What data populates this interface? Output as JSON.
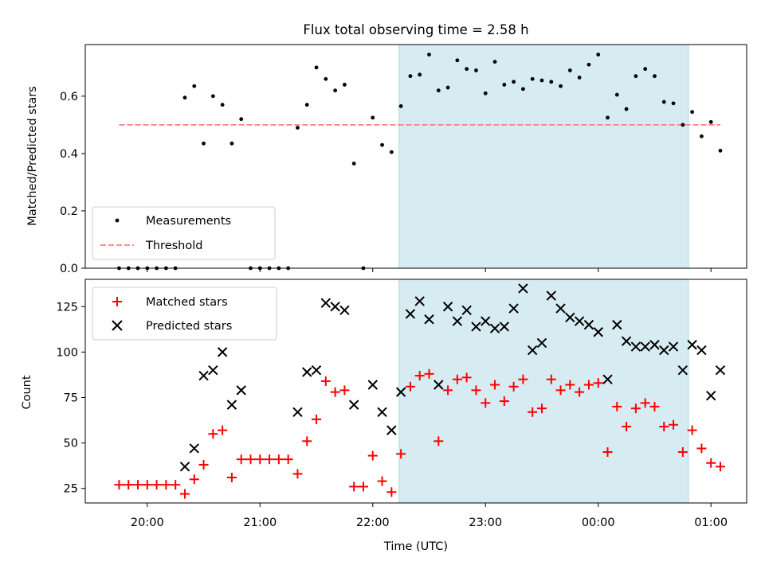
{
  "figure_title": "Flux total observing time = 2.58 h",
  "colors": {
    "measurements": "#000000",
    "threshold": "#ff7f7f",
    "matched": "#ff0000",
    "predicted": "#000000",
    "shade": "#add8e6"
  },
  "chart_data": [
    {
      "type": "scatter",
      "title": "Flux total observing time = 2.58 h",
      "xlabel": "",
      "ylabel": "Matched/Predicted stars",
      "ylim": [
        0,
        0.78
      ],
      "xlim": [
        "19:27",
        "01:19"
      ],
      "yticks": [
        "0.0",
        "0.2",
        "0.4",
        "0.6"
      ],
      "legend": "lower-left",
      "shaded_interval": [
        "22:14",
        "00:48"
      ],
      "threshold": {
        "name": "Threshold",
        "value": 0.5,
        "x_range": [
          "19:45",
          "01:05"
        ]
      },
      "series": [
        {
          "name": "Measurements",
          "marker": "dot",
          "points": [
            [
              "19:45",
              0.0
            ],
            [
              "19:50",
              0.0
            ],
            [
              "19:55",
              0.0
            ],
            [
              "20:00",
              0.0
            ],
            [
              "20:05",
              0.0
            ],
            [
              "20:10",
              0.0
            ],
            [
              "20:15",
              0.0
            ],
            [
              "20:20",
              0.595
            ],
            [
              "20:25",
              0.635
            ],
            [
              "20:30",
              0.435
            ],
            [
              "20:35",
              0.6
            ],
            [
              "20:40",
              0.57
            ],
            [
              "20:45",
              0.435
            ],
            [
              "20:50",
              0.52
            ],
            [
              "20:55",
              0.0
            ],
            [
              "21:00",
              0.0
            ],
            [
              "21:05",
              0.0
            ],
            [
              "21:10",
              0.0
            ],
            [
              "21:15",
              0.0
            ],
            [
              "21:20",
              0.49
            ],
            [
              "21:25",
              0.57
            ],
            [
              "21:30",
              0.7
            ],
            [
              "21:35",
              0.66
            ],
            [
              "21:40",
              0.62
            ],
            [
              "21:45",
              0.64
            ],
            [
              "21:50",
              0.365
            ],
            [
              "21:55",
              0.0
            ],
            [
              "22:00",
              0.525
            ],
            [
              "22:05",
              0.43
            ],
            [
              "22:10",
              0.405
            ],
            [
              "22:15",
              0.565
            ],
            [
              "22:20",
              0.67
            ],
            [
              "22:25",
              0.675
            ],
            [
              "22:30",
              0.745
            ],
            [
              "22:35",
              0.62
            ],
            [
              "22:40",
              0.63
            ],
            [
              "22:45",
              0.725
            ],
            [
              "22:50",
              0.695
            ],
            [
              "22:55",
              0.69
            ],
            [
              "23:00",
              0.61
            ],
            [
              "23:05",
              0.72
            ],
            [
              "23:10",
              0.64
            ],
            [
              "23:15",
              0.65
            ],
            [
              "23:20",
              0.625
            ],
            [
              "23:25",
              0.66
            ],
            [
              "23:30",
              0.655
            ],
            [
              "23:35",
              0.65
            ],
            [
              "23:40",
              0.635
            ],
            [
              "23:45",
              0.69
            ],
            [
              "23:50",
              0.665
            ],
            [
              "23:55",
              0.71
            ],
            [
              "00:00",
              0.745
            ],
            [
              "00:05",
              0.525
            ],
            [
              "00:10",
              0.605
            ],
            [
              "00:15",
              0.555
            ],
            [
              "00:20",
              0.67
            ],
            [
              "00:25",
              0.695
            ],
            [
              "00:30",
              0.67
            ],
            [
              "00:35",
              0.58
            ],
            [
              "00:40",
              0.575
            ],
            [
              "00:45",
              0.5
            ],
            [
              "00:50",
              0.545
            ],
            [
              "00:55",
              0.46
            ],
            [
              "01:00",
              0.51
            ],
            [
              "01:05",
              0.41
            ]
          ]
        }
      ]
    },
    {
      "type": "scatter",
      "xlabel": "Time (UTC)",
      "ylabel": "Count",
      "ylim": [
        17,
        140
      ],
      "xlim": [
        "19:27",
        "01:19"
      ],
      "yticks": [
        "25",
        "50",
        "75",
        "100",
        "125"
      ],
      "xticks": [
        "20:00",
        "21:00",
        "22:00",
        "23:00",
        "00:00",
        "01:00"
      ],
      "legend": "upper-left",
      "shaded_interval": [
        "22:14",
        "00:48"
      ],
      "series": [
        {
          "name": "Matched stars",
          "marker": "plus",
          "points": [
            [
              "19:45",
              27
            ],
            [
              "19:50",
              27
            ],
            [
              "19:55",
              27
            ],
            [
              "20:00",
              27
            ],
            [
              "20:05",
              27
            ],
            [
              "20:10",
              27
            ],
            [
              "20:15",
              27
            ],
            [
              "20:20",
              22
            ],
            [
              "20:25",
              30
            ],
            [
              "20:30",
              38
            ],
            [
              "20:35",
              55
            ],
            [
              "20:40",
              57
            ],
            [
              "20:45",
              31
            ],
            [
              "20:50",
              41
            ],
            [
              "20:55",
              41
            ],
            [
              "21:00",
              41
            ],
            [
              "21:05",
              41
            ],
            [
              "21:10",
              41
            ],
            [
              "21:15",
              41
            ],
            [
              "21:20",
              33
            ],
            [
              "21:25",
              51
            ],
            [
              "21:30",
              63
            ],
            [
              "21:35",
              84
            ],
            [
              "21:40",
              78
            ],
            [
              "21:45",
              79
            ],
            [
              "21:50",
              26
            ],
            [
              "21:55",
              26
            ],
            [
              "22:00",
              43
            ],
            [
              "22:05",
              29
            ],
            [
              "22:10",
              23
            ],
            [
              "22:15",
              44
            ],
            [
              "22:20",
              81
            ],
            [
              "22:25",
              87
            ],
            [
              "22:30",
              88
            ],
            [
              "22:35",
              51
            ],
            [
              "22:40",
              79
            ],
            [
              "22:45",
              85
            ],
            [
              "22:50",
              86
            ],
            [
              "22:55",
              79
            ],
            [
              "23:00",
              72
            ],
            [
              "23:05",
              82
            ],
            [
              "23:10",
              73
            ],
            [
              "23:15",
              81
            ],
            [
              "23:20",
              85
            ],
            [
              "23:25",
              67
            ],
            [
              "23:30",
              69
            ],
            [
              "23:35",
              85
            ],
            [
              "23:40",
              79
            ],
            [
              "23:45",
              82
            ],
            [
              "23:50",
              78
            ],
            [
              "23:55",
              82
            ],
            [
              "00:00",
              83
            ],
            [
              "00:05",
              45
            ],
            [
              "00:10",
              70
            ],
            [
              "00:15",
              59
            ],
            [
              "00:20",
              69
            ],
            [
              "00:25",
              72
            ],
            [
              "00:30",
              70
            ],
            [
              "00:35",
              59
            ],
            [
              "00:40",
              60
            ],
            [
              "00:45",
              45
            ],
            [
              "00:50",
              57
            ],
            [
              "00:55",
              47
            ],
            [
              "01:00",
              39
            ],
            [
              "01:05",
              37
            ]
          ]
        },
        {
          "name": "Predicted stars",
          "marker": "x",
          "points": [
            [
              "20:20",
              37
            ],
            [
              "20:25",
              47
            ],
            [
              "20:30",
              87
            ],
            [
              "20:35",
              90
            ],
            [
              "20:40",
              100
            ],
            [
              "20:45",
              71
            ],
            [
              "20:50",
              79
            ],
            [
              "21:20",
              67
            ],
            [
              "21:25",
              89
            ],
            [
              "21:30",
              90
            ],
            [
              "21:35",
              127
            ],
            [
              "21:40",
              125
            ],
            [
              "21:45",
              123
            ],
            [
              "21:50",
              71
            ],
            [
              "22:00",
              82
            ],
            [
              "22:05",
              67
            ],
            [
              "22:10",
              57
            ],
            [
              "22:15",
              78
            ],
            [
              "22:20",
              121
            ],
            [
              "22:25",
              128
            ],
            [
              "22:30",
              118
            ],
            [
              "22:35",
              82
            ],
            [
              "22:40",
              125
            ],
            [
              "22:45",
              117
            ],
            [
              "22:50",
              123
            ],
            [
              "22:55",
              114
            ],
            [
              "23:00",
              117
            ],
            [
              "23:05",
              113
            ],
            [
              "23:10",
              114
            ],
            [
              "23:15",
              124
            ],
            [
              "23:20",
              135
            ],
            [
              "23:25",
              101
            ],
            [
              "23:30",
              105
            ],
            [
              "23:35",
              131
            ],
            [
              "23:40",
              124
            ],
            [
              "23:45",
              119
            ],
            [
              "23:50",
              117
            ],
            [
              "23:55",
              115
            ],
            [
              "00:00",
              111
            ],
            [
              "00:05",
              85
            ],
            [
              "00:10",
              115
            ],
            [
              "00:15",
              106
            ],
            [
              "00:20",
              103
            ],
            [
              "00:25",
              103
            ],
            [
              "00:30",
              104
            ],
            [
              "00:35",
              101
            ],
            [
              "00:40",
              103
            ],
            [
              "00:45",
              90
            ],
            [
              "00:50",
              104
            ],
            [
              "00:55",
              101
            ],
            [
              "01:00",
              76
            ],
            [
              "01:05",
              90
            ]
          ]
        }
      ]
    }
  ]
}
